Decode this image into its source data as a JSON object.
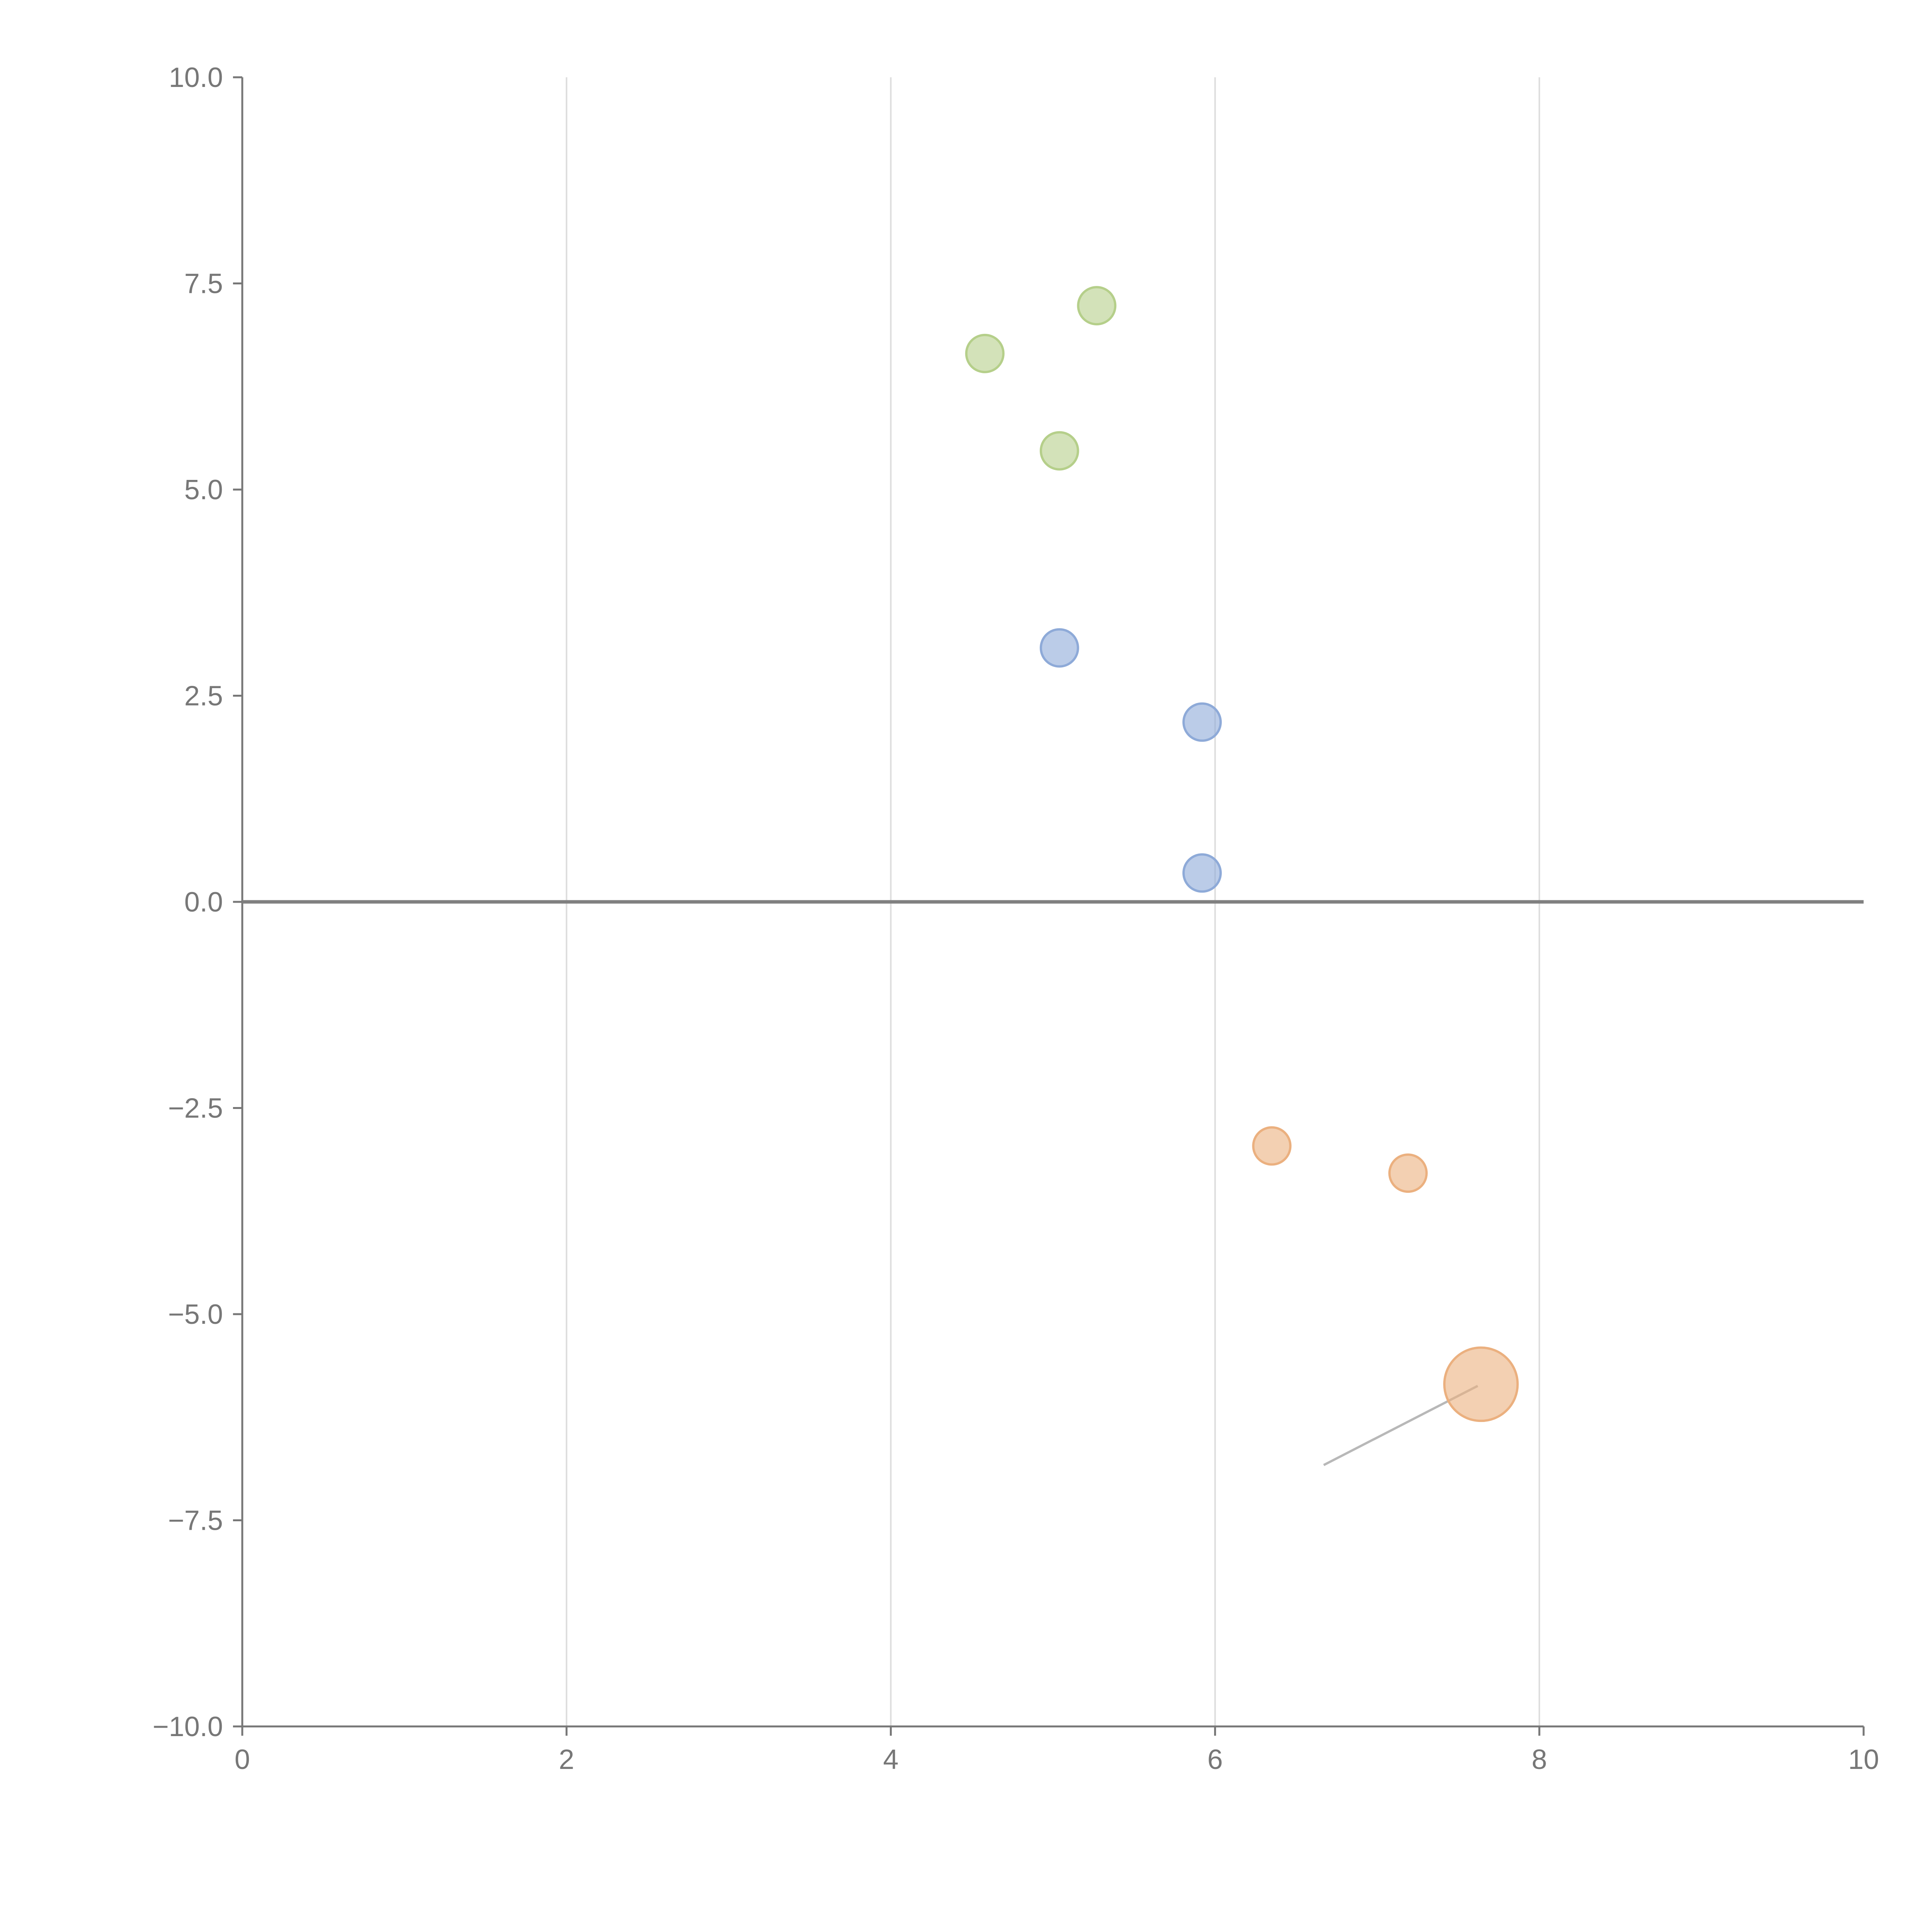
{
  "chart_data": {
    "type": "scatter",
    "title": "",
    "xlabel": "",
    "ylabel": "",
    "xlim": [
      0,
      10
    ],
    "ylim": [
      -10,
      10
    ],
    "grid": "vertical",
    "legend": "none",
    "x_ticks": [
      "0",
      "2",
      "4",
      "6",
      "8",
      "10"
    ],
    "y_ticks": [
      "10.0",
      "7.5",
      "5.0",
      "2.5",
      "0.0",
      "−2.5",
      "−5.0",
      "−7.5",
      "−10.0"
    ],
    "reference_line_y": 0,
    "series": [
      {
        "name": "green",
        "color": "#b5cf8a",
        "points": [
          {
            "x": 4.58,
            "y": 6.65,
            "size": 1
          },
          {
            "x": 5.27,
            "y": 7.23,
            "size": 1
          },
          {
            "x": 5.04,
            "y": 5.47,
            "size": 1
          }
        ]
      },
      {
        "name": "blue",
        "color": "#8eaad8",
        "points": [
          {
            "x": 5.04,
            "y": 3.08,
            "size": 1
          },
          {
            "x": 5.92,
            "y": 2.18,
            "size": 1
          },
          {
            "x": 5.92,
            "y": 0.35,
            "size": 1
          }
        ]
      },
      {
        "name": "orange",
        "color": "#ebb07f",
        "points": [
          {
            "x": 6.35,
            "y": -2.96,
            "size": 1
          },
          {
            "x": 7.19,
            "y": -3.29,
            "size": 1
          },
          {
            "x": 7.64,
            "y": -5.85,
            "size": 3.9
          }
        ]
      }
    ],
    "annotation_line": {
      "x1": 6.67,
      "y1": -6.83,
      "x2": 7.62,
      "y2": -5.87
    }
  }
}
